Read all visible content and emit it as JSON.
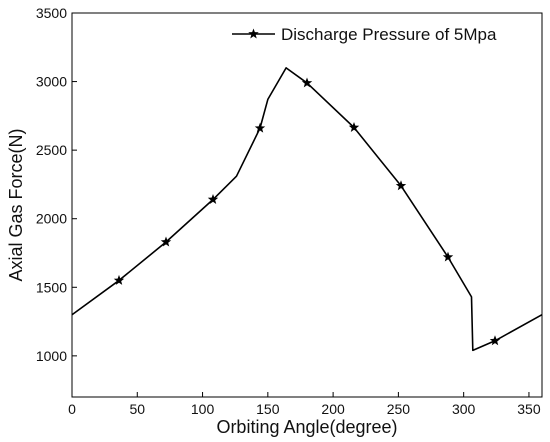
{
  "chart_data": {
    "type": "line",
    "title": "",
    "xlabel": "Orbiting Angle(degree)",
    "ylabel": "Axial Gas Force(N)",
    "xlim": [
      0,
      360
    ],
    "ylim": [
      700,
      3500
    ],
    "x_ticks": [
      0,
      50,
      100,
      150,
      200,
      250,
      300,
      350
    ],
    "y_ticks": [
      1000,
      1500,
      2000,
      2500,
      3000,
      3500
    ],
    "x_tick_labels": [
      "0",
      "50",
      "100",
      "150",
      "200",
      "250",
      "300",
      "350"
    ],
    "y_tick_labels": [
      "1000",
      "1500",
      "2000",
      "2500",
      "3000",
      "3500"
    ],
    "grid": false,
    "legend_position": "top-right",
    "series": [
      {
        "name": "Discharge Pressure of 5Mpa",
        "color": "#000000",
        "marker": "star",
        "x": [
          0,
          36,
          72,
          108,
          126,
          144,
          150,
          164,
          180,
          216,
          252,
          288,
          306,
          307,
          324,
          360
        ],
        "y": [
          1300,
          1550,
          1830,
          2140,
          2310,
          2660,
          2870,
          3100,
          2990,
          2665,
          2240,
          1720,
          1430,
          1040,
          1110,
          1300
        ],
        "markers_x": [
          36,
          72,
          108,
          144,
          180,
          216,
          252,
          288,
          324
        ],
        "markers_y": [
          1550,
          1830,
          2140,
          2660,
          2990,
          2665,
          2240,
          1720,
          1110
        ]
      }
    ]
  }
}
